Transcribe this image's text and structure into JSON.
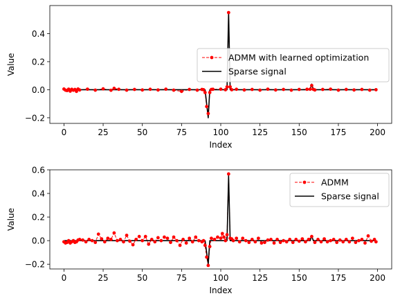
{
  "chart_data": [
    {
      "type": "line",
      "xlabel": "Index",
      "ylabel": "Value",
      "xlim": [
        -9,
        209
      ],
      "ylim": [
        -0.24,
        0.6
      ],
      "xticks": [
        0,
        25,
        50,
        75,
        100,
        125,
        150,
        175,
        200
      ],
      "yticks": [
        -0.2,
        0.0,
        0.2,
        0.4
      ],
      "ytick_labels": [
        "−0.2",
        "0.0",
        "0.2",
        "0.4"
      ],
      "legend_loc": "center-right",
      "series": [
        {
          "name": "ADMM with learned optimization",
          "style": "dashed-marker",
          "color": "#ff0000",
          "points": [
            [
              0,
              0.005
            ],
            [
              1,
              -0.003
            ],
            [
              2,
              -0.006
            ],
            [
              3,
              0.004
            ],
            [
              4,
              -0.01
            ],
            [
              5,
              0.003
            ],
            [
              6,
              -0.004
            ],
            [
              7,
              0.002
            ],
            [
              8,
              -0.012
            ],
            [
              9,
              0.005
            ],
            [
              10,
              -0.002
            ],
            [
              15,
              0.004
            ],
            [
              20,
              -0.003
            ],
            [
              25,
              0.006
            ],
            [
              30,
              -0.004
            ],
            [
              32,
              0.01
            ],
            [
              35,
              0.003
            ],
            [
              40,
              -0.003
            ],
            [
              45,
              0.002
            ],
            [
              50,
              -0.002
            ],
            [
              55,
              0.003
            ],
            [
              60,
              -0.002
            ],
            [
              65,
              0.004
            ],
            [
              70,
              -0.003
            ],
            [
              75,
              -0.012
            ],
            [
              80,
              0.002
            ],
            [
              85,
              -0.003
            ],
            [
              88,
              0.002
            ],
            [
              89,
              0.0
            ],
            [
              90,
              -0.02
            ],
            [
              91,
              -0.12
            ],
            [
              92,
              -0.17
            ],
            [
              93,
              -0.02
            ],
            [
              94,
              0.002
            ],
            [
              95,
              0.003
            ],
            [
              100,
              0.004
            ],
            [
              103,
              0.0
            ],
            [
              104,
              0.02
            ],
            [
              105,
              0.55
            ],
            [
              106,
              0.02
            ],
            [
              107,
              0.0
            ],
            [
              110,
              0.003
            ],
            [
              115,
              -0.002
            ],
            [
              120,
              0.002
            ],
            [
              125,
              -0.003
            ],
            [
              130,
              0.004
            ],
            [
              135,
              -0.002
            ],
            [
              140,
              0.002
            ],
            [
              145,
              -0.003
            ],
            [
              150,
              0.002
            ],
            [
              155,
              0.003
            ],
            [
              157,
              0.004
            ],
            [
              158,
              0.03
            ],
            [
              159,
              0.003
            ],
            [
              160,
              -0.002
            ],
            [
              165,
              0.002
            ],
            [
              170,
              0.004
            ],
            [
              175,
              -0.003
            ],
            [
              180,
              0.002
            ],
            [
              185,
              -0.002
            ],
            [
              190,
              0.002
            ],
            [
              195,
              -0.003
            ],
            [
              199,
              0.0
            ]
          ]
        },
        {
          "name": "Sparse signal",
          "style": "solid",
          "color": "#000000",
          "points": [
            [
              0,
              0.0
            ],
            [
              90,
              0.0
            ],
            [
              91,
              -0.1
            ],
            [
              92,
              -0.2
            ],
            [
              93,
              0.0
            ],
            [
              104,
              0.0
            ],
            [
              105,
              0.55
            ],
            [
              106,
              0.0
            ],
            [
              157,
              0.0
            ],
            [
              158,
              0.04
            ],
            [
              159,
              0.0
            ],
            [
              199,
              0.0
            ]
          ]
        }
      ]
    },
    {
      "type": "line",
      "xlabel": "Index",
      "ylabel": "Value",
      "xlim": [
        -9,
        209
      ],
      "ylim": [
        -0.24,
        0.6
      ],
      "xticks": [
        0,
        25,
        50,
        75,
        100,
        125,
        150,
        175,
        200
      ],
      "yticks": [
        -0.2,
        0.0,
        0.2,
        0.4,
        0.6
      ],
      "ytick_labels": [
        "−0.2",
        "0.0",
        "0.2",
        "0.4",
        "0.6"
      ],
      "legend_loc": "top-right",
      "series": [
        {
          "name": "ADMM",
          "style": "dashed-marker",
          "color": "#ff0000",
          "points": [
            [
              0,
              -0.01
            ],
            [
              1,
              -0.02
            ],
            [
              2,
              -0.015
            ],
            [
              3,
              0.0
            ],
            [
              4,
              -0.02
            ],
            [
              5,
              -0.01
            ],
            [
              6,
              0.0
            ],
            [
              7,
              -0.015
            ],
            [
              8,
              -0.01
            ],
            [
              9,
              0.005
            ],
            [
              10,
              0.01
            ],
            [
              12,
              0.005
            ],
            [
              14,
              -0.01
            ],
            [
              16,
              0.01
            ],
            [
              18,
              0.0
            ],
            [
              20,
              -0.015
            ],
            [
              22,
              0.055
            ],
            [
              24,
              0.015
            ],
            [
              26,
              -0.01
            ],
            [
              28,
              0.02
            ],
            [
              30,
              0.01
            ],
            [
              32,
              0.065
            ],
            [
              34,
              0.0
            ],
            [
              36,
              0.01
            ],
            [
              38,
              -0.01
            ],
            [
              40,
              0.045
            ],
            [
              42,
              -0.005
            ],
            [
              44,
              -0.035
            ],
            [
              46,
              0.01
            ],
            [
              48,
              0.035
            ],
            [
              50,
              0.0
            ],
            [
              52,
              0.035
            ],
            [
              54,
              -0.03
            ],
            [
              56,
              0.01
            ],
            [
              58,
              -0.01
            ],
            [
              60,
              0.025
            ],
            [
              62,
              0.0
            ],
            [
              64,
              0.03
            ],
            [
              66,
              0.02
            ],
            [
              68,
              -0.015
            ],
            [
              70,
              0.03
            ],
            [
              72,
              0.0
            ],
            [
              74,
              -0.04
            ],
            [
              76,
              0.01
            ],
            [
              78,
              -0.02
            ],
            [
              80,
              0.02
            ],
            [
              82,
              -0.01
            ],
            [
              84,
              0.03
            ],
            [
              86,
              0.0
            ],
            [
              88,
              -0.01
            ],
            [
              89,
              0.0
            ],
            [
              90,
              -0.04
            ],
            [
              91,
              -0.14
            ],
            [
              92,
              -0.21
            ],
            [
              93,
              -0.05
            ],
            [
              94,
              0.02
            ],
            [
              96,
              0.01
            ],
            [
              98,
              0.03
            ],
            [
              100,
              0.02
            ],
            [
              101,
              0.06
            ],
            [
              102,
              0.03
            ],
            [
              103,
              0.0
            ],
            [
              104,
              0.05
            ],
            [
              105,
              0.565
            ],
            [
              106,
              0.02
            ],
            [
              107,
              0.015
            ],
            [
              108,
              0.0
            ],
            [
              110,
              0.02
            ],
            [
              112,
              -0.01
            ],
            [
              114,
              0.02
            ],
            [
              116,
              0.0
            ],
            [
              118,
              -0.015
            ],
            [
              120,
              0.01
            ],
            [
              122,
              -0.01
            ],
            [
              124,
              0.02
            ],
            [
              126,
              -0.02
            ],
            [
              128,
              -0.015
            ],
            [
              130,
              0.005
            ],
            [
              132,
              0.01
            ],
            [
              134,
              -0.02
            ],
            [
              136,
              0.01
            ],
            [
              138,
              -0.015
            ],
            [
              140,
              0.0
            ],
            [
              142,
              -0.01
            ],
            [
              144,
              0.01
            ],
            [
              146,
              -0.015
            ],
            [
              148,
              0.01
            ],
            [
              150,
              -0.005
            ],
            [
              152,
              0.015
            ],
            [
              154,
              -0.01
            ],
            [
              156,
              0.01
            ],
            [
              158,
              0.035
            ],
            [
              160,
              -0.015
            ],
            [
              162,
              0.01
            ],
            [
              164,
              -0.01
            ],
            [
              166,
              0.015
            ],
            [
              168,
              -0.01
            ],
            [
              170,
              0.0
            ],
            [
              172,
              0.01
            ],
            [
              174,
              -0.015
            ],
            [
              176,
              0.005
            ],
            [
              178,
              -0.01
            ],
            [
              180,
              0.01
            ],
            [
              182,
              -0.01
            ],
            [
              184,
              0.02
            ],
            [
              186,
              -0.015
            ],
            [
              188,
              0.0
            ],
            [
              190,
              0.01
            ],
            [
              192,
              -0.02
            ],
            [
              194,
              0.04
            ],
            [
              196,
              -0.005
            ],
            [
              198,
              0.01
            ],
            [
              199,
              -0.01
            ]
          ]
        },
        {
          "name": "Sparse signal",
          "style": "solid",
          "color": "#000000",
          "points": [
            [
              0,
              0.0
            ],
            [
              90,
              0.0
            ],
            [
              91,
              -0.1
            ],
            [
              92,
              -0.2
            ],
            [
              93,
              0.0
            ],
            [
              104,
              0.0
            ],
            [
              105,
              0.55
            ],
            [
              106,
              0.0
            ],
            [
              157,
              0.0
            ],
            [
              158,
              0.04
            ],
            [
              159,
              0.0
            ],
            [
              199,
              0.0
            ]
          ]
        }
      ]
    }
  ]
}
